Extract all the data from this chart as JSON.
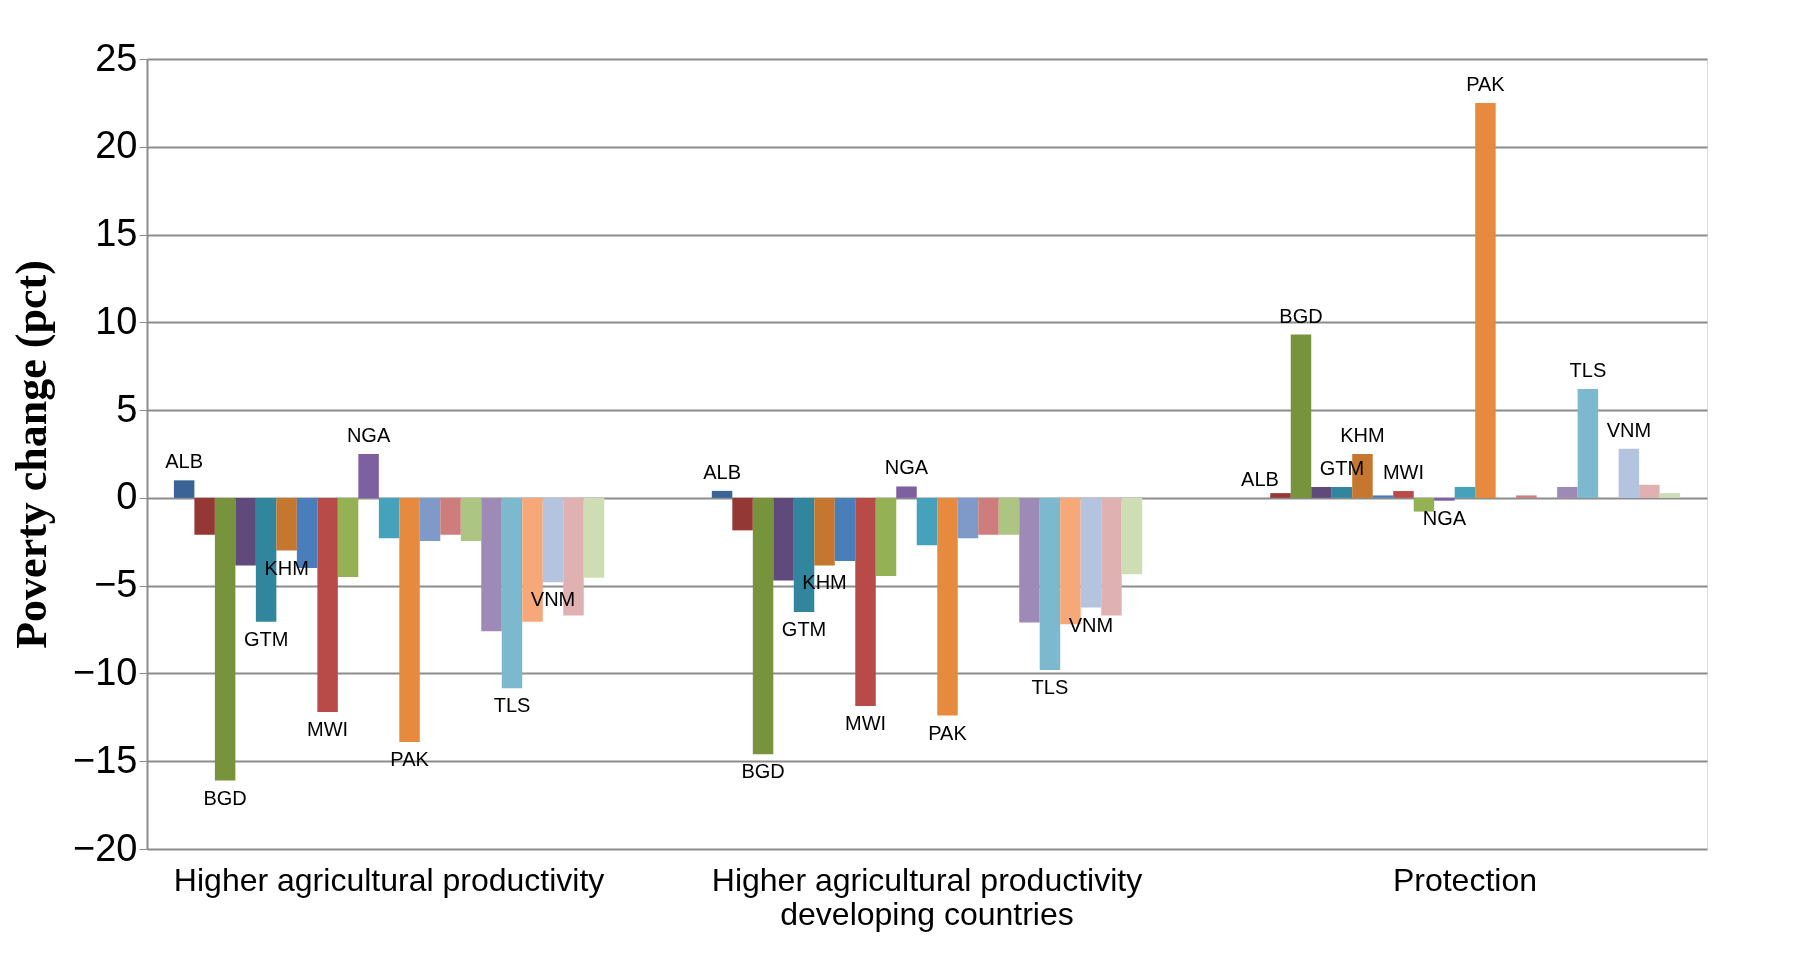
{
  "chart_data": {
    "type": "bar",
    "ylabel": "Poverty change (pct)",
    "categories": [
      "Higher agricultural productivity",
      "Higher agricultural productivity developing countries",
      "Protection"
    ],
    "ylim": [
      -20,
      25
    ],
    "yticks": [
      -20,
      -15,
      -10,
      -5,
      0,
      5,
      10,
      15,
      20,
      25
    ],
    "grid": "y",
    "legend": false,
    "series": [
      {
        "name": "ALB",
        "color": "#3a6496",
        "values": [
          1.0,
          0.4,
          0
        ]
      },
      {
        "color": "#953735",
        "values": [
          -2.1,
          -1.85,
          0.27
        ]
      },
      {
        "name": "BGD",
        "color": "#77933c",
        "values": [
          -16.1,
          -14.6,
          9.3
        ]
      },
      {
        "color": "#604a7b",
        "values": [
          -3.85,
          -4.7,
          0.62
        ]
      },
      {
        "name": "GTM",
        "color": "#31859c",
        "values": [
          -7.05,
          -6.5,
          0.62
        ]
      },
      {
        "name": "KHM",
        "color": "#c6772f",
        "values": [
          -3.0,
          -3.85,
          2.5
        ]
      },
      {
        "color": "#4a7ebb",
        "values": [
          -4.0,
          -3.6,
          0.14
        ]
      },
      {
        "name": "MWI",
        "color": "#b84b48",
        "values": [
          -12.2,
          -11.85,
          0.39
        ]
      },
      {
        "color": "#94b254",
        "values": [
          -4.5,
          -4.45,
          -0.78
        ]
      },
      {
        "name": "NGA",
        "color": "#7d60a0",
        "values": [
          2.5,
          0.65,
          -0.16
        ]
      },
      {
        "color": "#46a1bb",
        "values": [
          -2.3,
          -2.7,
          0.62
        ]
      },
      {
        "name": "PAK",
        "color": "#e68a3e",
        "values": [
          -13.9,
          -12.4,
          22.5
        ]
      },
      {
        "color": "#7f9ac8",
        "values": [
          -2.45,
          -2.3,
          0
        ]
      },
      {
        "color": "#cd7d7b",
        "values": [
          -2.1,
          -2.1,
          0.14
        ]
      },
      {
        "color": "#acc582",
        "values": [
          -2.45,
          -2.1,
          0
        ]
      },
      {
        "color": "#9e8ab6",
        "values": [
          -7.6,
          -7.1,
          0.62
        ]
      },
      {
        "name": "TLS",
        "color": "#7cb9cf",
        "values": [
          -10.85,
          -9.8,
          6.2
        ]
      },
      {
        "color": "#f7a878",
        "values": [
          -7.05,
          -7.2,
          0
        ]
      },
      {
        "name": "VNM",
        "color": "#b4c3de",
        "values": [
          -4.8,
          -6.25,
          2.8
        ]
      },
      {
        "color": "#dfb2b1",
        "values": [
          -6.7,
          -6.7,
          0.75
        ]
      },
      {
        "color": "#cfddb5",
        "values": [
          -4.55,
          -4.35,
          0.27
        ]
      }
    ]
  }
}
